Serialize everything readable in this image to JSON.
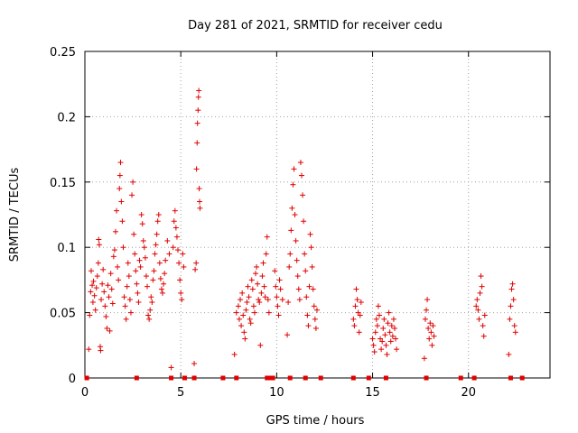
{
  "chart_data": {
    "type": "scatter",
    "title": "Day 281 of 2021, SRMTID for receiver cedu",
    "xlabel": "GPS time / hours",
    "ylabel": "SRMTID / TECUs",
    "xlim": [
      0,
      24.25
    ],
    "ylim": [
      0,
      0.25
    ],
    "xticks": [
      0,
      5,
      10,
      15,
      20
    ],
    "xtick_labels": [
      "0",
      "5",
      "10",
      "15",
      "20"
    ],
    "yticks": [
      0,
      0.05,
      0.1,
      0.15,
      0.2,
      0.25
    ],
    "ytick_labels": [
      "0",
      "0.05",
      "0.1",
      "0.15",
      "0.2",
      "0.25"
    ],
    "grid": true,
    "marker": "plus",
    "color": "#e00000",
    "series": [
      {
        "name": "SRMTID",
        "points": [
          [
            0.2,
            0.022
          ],
          [
            0.25,
            0.048
          ],
          [
            0.3,
            0.066
          ],
          [
            0.33,
            0.082
          ],
          [
            0.38,
            0.071
          ],
          [
            0.42,
            0.058
          ],
          [
            0.45,
            0.074
          ],
          [
            0.5,
            0.063
          ],
          [
            0.55,
            0.052
          ],
          [
            0.6,
            0.069
          ],
          [
            0.65,
            0.078
          ],
          [
            0.7,
            0.088
          ],
          [
            0.72,
            0.106
          ],
          [
            0.75,
            0.102
          ],
          [
            0.8,
            0.024
          ],
          [
            0.82,
            0.021
          ],
          [
            0.85,
            0.06
          ],
          [
            0.9,
            0.072
          ],
          [
            0.95,
            0.083
          ],
          [
            1.0,
            0.066
          ],
          [
            1.05,
            0.055
          ],
          [
            1.1,
            0.047
          ],
          [
            1.15,
            0.038
          ],
          [
            1.2,
            0.071
          ],
          [
            1.25,
            0.062
          ],
          [
            1.3,
            0.036
          ],
          [
            1.35,
            0.08
          ],
          [
            1.4,
            0.068
          ],
          [
            1.45,
            0.057
          ],
          [
            1.5,
            0.093
          ],
          [
            1.55,
            0.098
          ],
          [
            1.6,
            0.112
          ],
          [
            1.65,
            0.128
          ],
          [
            1.7,
            0.085
          ],
          [
            1.75,
            0.075
          ],
          [
            1.8,
            0.145
          ],
          [
            1.83,
            0.155
          ],
          [
            1.86,
            0.165
          ],
          [
            1.9,
            0.135
          ],
          [
            1.95,
            0.12
          ],
          [
            2.0,
            0.1
          ],
          [
            2.05,
            0.062
          ],
          [
            2.1,
            0.055
          ],
          [
            2.15,
            0.045
          ],
          [
            2.2,
            0.07
          ],
          [
            2.25,
            0.088
          ],
          [
            2.3,
            0.078
          ],
          [
            2.35,
            0.06
          ],
          [
            2.4,
            0.05
          ],
          [
            2.45,
            0.14
          ],
          [
            2.5,
            0.15
          ],
          [
            2.55,
            0.11
          ],
          [
            2.6,
            0.095
          ],
          [
            2.65,
            0.082
          ],
          [
            2.7,
            0.072
          ],
          [
            2.75,
            0.065
          ],
          [
            2.8,
            0.058
          ],
          [
            2.85,
            0.09
          ],
          [
            2.9,
            0.085
          ],
          [
            2.95,
            0.125
          ],
          [
            3.0,
            0.118
          ],
          [
            3.05,
            0.105
          ],
          [
            3.1,
            0.1
          ],
          [
            3.15,
            0.092
          ],
          [
            3.2,
            0.078
          ],
          [
            3.25,
            0.07
          ],
          [
            3.3,
            0.048
          ],
          [
            3.35,
            0.045
          ],
          [
            3.4,
            0.052
          ],
          [
            3.45,
            0.062
          ],
          [
            3.5,
            0.058
          ],
          [
            3.55,
            0.075
          ],
          [
            3.6,
            0.082
          ],
          [
            3.65,
            0.095
          ],
          [
            3.7,
            0.102
          ],
          [
            3.75,
            0.11
          ],
          [
            3.8,
            0.12
          ],
          [
            3.85,
            0.125
          ],
          [
            3.9,
            0.088
          ],
          [
            3.95,
            0.076
          ],
          [
            4.0,
            0.068
          ],
          [
            4.05,
            0.065
          ],
          [
            4.1,
            0.072
          ],
          [
            4.15,
            0.08
          ],
          [
            4.2,
            0.09
          ],
          [
            4.3,
            0.105
          ],
          [
            4.4,
            0.095
          ],
          [
            4.5,
            0.008
          ],
          [
            4.6,
            0.1
          ],
          [
            4.65,
            0.12
          ],
          [
            4.7,
            0.128
          ],
          [
            4.75,
            0.115
          ],
          [
            4.8,
            0.108
          ],
          [
            4.85,
            0.098
          ],
          [
            4.9,
            0.088
          ],
          [
            4.95,
            0.075
          ],
          [
            5.0,
            0.065
          ],
          [
            5.05,
            0.06
          ],
          [
            5.1,
            0.095
          ],
          [
            5.15,
            0.085
          ],
          [
            5.7,
            0.011
          ],
          [
            5.75,
            0.083
          ],
          [
            5.8,
            0.088
          ],
          [
            5.82,
            0.16
          ],
          [
            5.85,
            0.18
          ],
          [
            5.87,
            0.195
          ],
          [
            5.9,
            0.205
          ],
          [
            5.92,
            0.215
          ],
          [
            5.94,
            0.22
          ],
          [
            5.96,
            0.145
          ],
          [
            5.98,
            0.135
          ],
          [
            6.0,
            0.13
          ],
          [
            7.8,
            0.018
          ],
          [
            7.9,
            0.05
          ],
          [
            8.0,
            0.055
          ],
          [
            8.05,
            0.045
          ],
          [
            8.1,
            0.06
          ],
          [
            8.15,
            0.04
          ],
          [
            8.2,
            0.065
          ],
          [
            8.25,
            0.048
          ],
          [
            8.3,
            0.035
          ],
          [
            8.35,
            0.03
          ],
          [
            8.4,
            0.052
          ],
          [
            8.45,
            0.058
          ],
          [
            8.5,
            0.07
          ],
          [
            8.55,
            0.062
          ],
          [
            8.6,
            0.045
          ],
          [
            8.65,
            0.042
          ],
          [
            8.7,
            0.075
          ],
          [
            8.75,
            0.068
          ],
          [
            8.8,
            0.055
          ],
          [
            8.85,
            0.05
          ],
          [
            8.9,
            0.08
          ],
          [
            8.95,
            0.085
          ],
          [
            9.0,
            0.072
          ],
          [
            9.05,
            0.06
          ],
          [
            9.1,
            0.058
          ],
          [
            9.15,
            0.025
          ],
          [
            9.2,
            0.065
          ],
          [
            9.25,
            0.078
          ],
          [
            9.3,
            0.088
          ],
          [
            9.35,
            0.07
          ],
          [
            9.4,
            0.062
          ],
          [
            9.45,
            0.095
          ],
          [
            9.5,
            0.108
          ],
          [
            9.55,
            0.06
          ],
          [
            9.6,
            0.05
          ],
          [
            9.9,
            0.082
          ],
          [
            9.95,
            0.07
          ],
          [
            10.0,
            0.062
          ],
          [
            10.05,
            0.055
          ],
          [
            10.1,
            0.048
          ],
          [
            10.15,
            0.075
          ],
          [
            10.2,
            0.068
          ],
          [
            10.3,
            0.06
          ],
          [
            10.55,
            0.033
          ],
          [
            10.6,
            0.058
          ],
          [
            10.65,
            0.085
          ],
          [
            10.7,
            0.095
          ],
          [
            10.75,
            0.113
          ],
          [
            10.8,
            0.13
          ],
          [
            10.85,
            0.148
          ],
          [
            10.9,
            0.16
          ],
          [
            10.95,
            0.125
          ],
          [
            11.0,
            0.105
          ],
          [
            11.05,
            0.09
          ],
          [
            11.1,
            0.078
          ],
          [
            11.15,
            0.068
          ],
          [
            11.2,
            0.06
          ],
          [
            11.25,
            0.165
          ],
          [
            11.3,
            0.155
          ],
          [
            11.35,
            0.14
          ],
          [
            11.4,
            0.12
          ],
          [
            11.45,
            0.095
          ],
          [
            11.5,
            0.082
          ],
          [
            11.55,
            0.062
          ],
          [
            11.6,
            0.048
          ],
          [
            11.65,
            0.04
          ],
          [
            11.7,
            0.07
          ],
          [
            11.75,
            0.11
          ],
          [
            11.8,
            0.1
          ],
          [
            11.85,
            0.085
          ],
          [
            11.9,
            0.068
          ],
          [
            11.95,
            0.055
          ],
          [
            12.0,
            0.045
          ],
          [
            12.05,
            0.038
          ],
          [
            12.1,
            0.052
          ],
          [
            14.0,
            0.045
          ],
          [
            14.05,
            0.04
          ],
          [
            14.1,
            0.055
          ],
          [
            14.15,
            0.068
          ],
          [
            14.2,
            0.06
          ],
          [
            14.25,
            0.05
          ],
          [
            14.3,
            0.035
          ],
          [
            14.35,
            0.048
          ],
          [
            14.4,
            0.058
          ],
          [
            15.0,
            0.03
          ],
          [
            15.05,
            0.025
          ],
          [
            15.1,
            0.02
          ],
          [
            15.15,
            0.035
          ],
          [
            15.2,
            0.045
          ],
          [
            15.25,
            0.04
          ],
          [
            15.3,
            0.055
          ],
          [
            15.35,
            0.048
          ],
          [
            15.4,
            0.03
          ],
          [
            15.45,
            0.022
          ],
          [
            15.5,
            0.028
          ],
          [
            15.55,
            0.038
          ],
          [
            15.6,
            0.045
          ],
          [
            15.65,
            0.033
          ],
          [
            15.7,
            0.025
          ],
          [
            15.75,
            0.018
          ],
          [
            15.8,
            0.042
          ],
          [
            15.85,
            0.05
          ],
          [
            15.9,
            0.035
          ],
          [
            15.95,
            0.028
          ],
          [
            16.0,
            0.04
          ],
          [
            16.05,
            0.032
          ],
          [
            16.1,
            0.045
          ],
          [
            16.15,
            0.038
          ],
          [
            16.2,
            0.03
          ],
          [
            16.25,
            0.022
          ],
          [
            17.7,
            0.015
          ],
          [
            17.75,
            0.045
          ],
          [
            17.8,
            0.052
          ],
          [
            17.85,
            0.06
          ],
          [
            17.9,
            0.038
          ],
          [
            17.95,
            0.03
          ],
          [
            18.0,
            0.042
          ],
          [
            18.05,
            0.035
          ],
          [
            18.1,
            0.025
          ],
          [
            18.15,
            0.04
          ],
          [
            18.2,
            0.032
          ],
          [
            20.4,
            0.055
          ],
          [
            20.45,
            0.06
          ],
          [
            20.5,
            0.052
          ],
          [
            20.55,
            0.045
          ],
          [
            20.6,
            0.065
          ],
          [
            20.65,
            0.078
          ],
          [
            20.7,
            0.07
          ],
          [
            20.75,
            0.04
          ],
          [
            20.8,
            0.032
          ],
          [
            20.85,
            0.048
          ],
          [
            22.1,
            0.018
          ],
          [
            22.15,
            0.045
          ],
          [
            22.2,
            0.055
          ],
          [
            22.25,
            0.068
          ],
          [
            22.3,
            0.072
          ],
          [
            22.35,
            0.06
          ],
          [
            22.4,
            0.04
          ],
          [
            22.45,
            0.035
          ]
        ]
      },
      {
        "name": "zero-baseline",
        "points": [
          [
            0.1,
            0
          ],
          [
            2.7,
            0
          ],
          [
            4.5,
            0
          ],
          [
            5.2,
            0
          ],
          [
            5.7,
            0
          ],
          [
            7.2,
            0
          ],
          [
            7.9,
            0
          ],
          [
            9.5,
            0
          ],
          [
            9.6,
            0
          ],
          [
            9.8,
            0
          ],
          [
            10.7,
            0
          ],
          [
            11.5,
            0
          ],
          [
            12.3,
            0
          ],
          [
            14.0,
            0
          ],
          [
            14.8,
            0
          ],
          [
            15.7,
            0
          ],
          [
            17.8,
            0
          ],
          [
            19.6,
            0
          ],
          [
            20.3,
            0
          ],
          [
            22.2,
            0
          ],
          [
            22.8,
            0
          ]
        ]
      }
    ]
  }
}
